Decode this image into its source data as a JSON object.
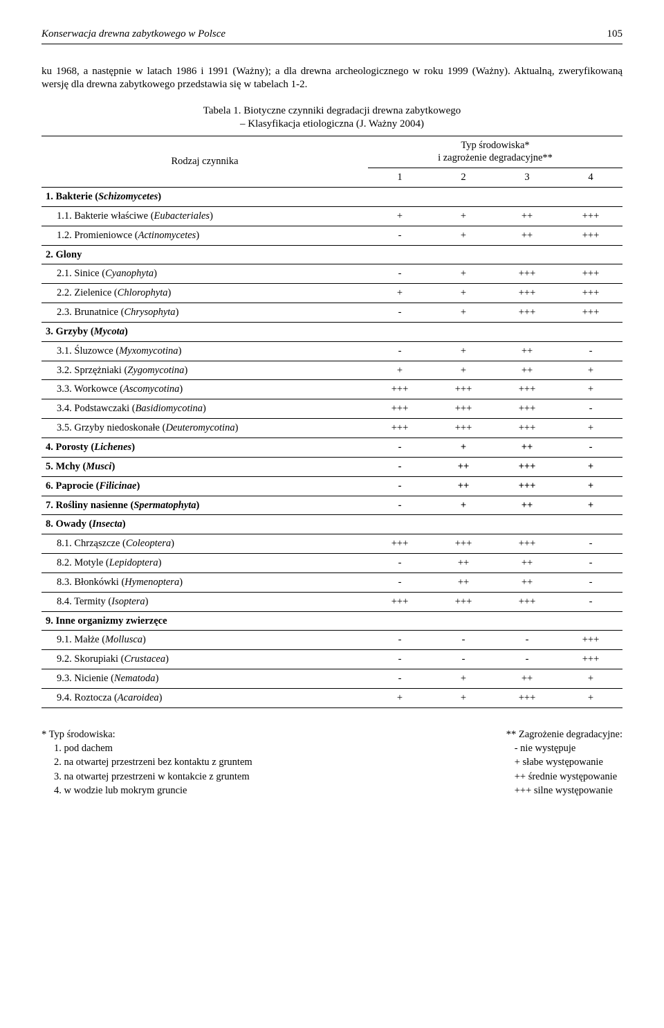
{
  "running_head": {
    "title": "Konserwacja drewna zabytkowego w Polsce",
    "page": "105"
  },
  "body_paragraph": "ku 1968, a następnie w latach 1986 i 1991 (Ważny); a dla drewna archeologicznego w roku 1999 (Ważny). Aktualną, zweryfikowaną wersję dla drewna zabytkowego przedstawia się w tabelach 1-2.",
  "table_caption_line1": "Tabela 1. Biotyczne czynniki degradacji drewna zabytkowego",
  "table_caption_line2": "– Klasyfikacja etiologiczna (J. Ważny 2004)",
  "headers": {
    "factor": "Rodzaj czynnika",
    "env_line1": "Typ środowiska*",
    "env_line2": "i zagrożenie degradacyjne**",
    "c1": "1",
    "c2": "2",
    "c3": "3",
    "c4": "4"
  },
  "rows": [
    {
      "type": "group",
      "label_plain": "1. Bakterie (",
      "label_italic": "Schizomycetes",
      "label_after": ")"
    },
    {
      "type": "sub",
      "label_plain": "1.1. Bakterie właściwe (",
      "label_italic": "Eubacteriales",
      "label_after": ")",
      "v": [
        "+",
        "+",
        "++",
        "+++"
      ]
    },
    {
      "type": "sub",
      "label_plain": "1.2. Promieniowce (",
      "label_italic": "Actinomycetes",
      "label_after": ")",
      "v": [
        "-",
        "+",
        "++",
        "+++"
      ]
    },
    {
      "type": "group",
      "label_plain": "2. Glony",
      "label_italic": "",
      "label_after": ""
    },
    {
      "type": "sub",
      "label_plain": "2.1. Sinice (",
      "label_italic": "Cyanophyta",
      "label_after": ")",
      "v": [
        "-",
        "+",
        "+++",
        "+++"
      ]
    },
    {
      "type": "sub",
      "label_plain": "2.2. Zielenice (",
      "label_italic": "Chlorophyta",
      "label_after": ")",
      "v": [
        "+",
        "+",
        "+++",
        "+++"
      ]
    },
    {
      "type": "sub",
      "label_plain": "2.3. Brunatnice (",
      "label_italic": "Chrysophyta",
      "label_after": ")",
      "v": [
        "-",
        "+",
        "+++",
        "+++"
      ]
    },
    {
      "type": "group",
      "label_plain": "3. Grzyby (",
      "label_italic": "Mycota",
      "label_after": ")"
    },
    {
      "type": "sub",
      "label_plain": "3.1. Śluzowce (",
      "label_italic": "Myxomycotina",
      "label_after": ")",
      "v": [
        "-",
        "+",
        "++",
        "-"
      ]
    },
    {
      "type": "sub",
      "label_plain": "3.2. Sprzężniaki (",
      "label_italic": "Zygomycotina",
      "label_after": ")",
      "v": [
        "+",
        "+",
        "++",
        "+"
      ]
    },
    {
      "type": "sub",
      "label_plain": "3.3. Workowce (",
      "label_italic": "Ascomycotina",
      "label_after": ")",
      "v": [
        "+++",
        "+++",
        "+++",
        "+"
      ]
    },
    {
      "type": "sub",
      "label_plain": "3.4. Podstawczaki (",
      "label_italic": "Basidiomycotina",
      "label_after": ")",
      "v": [
        "+++",
        "+++",
        "+++",
        "-"
      ]
    },
    {
      "type": "sub",
      "label_plain": "3.5. Grzyby niedoskonałe (",
      "label_italic": "Deuteromycotina",
      "label_after": ")",
      "v": [
        "+++",
        "+++",
        "+++",
        "+"
      ]
    },
    {
      "type": "group",
      "label_plain": "4. Porosty (",
      "label_italic": "Lichenes",
      "label_after": ")",
      "v": [
        "-",
        "+",
        "++",
        "-"
      ]
    },
    {
      "type": "group",
      "label_plain": "5. Mchy (",
      "label_italic": "Musci",
      "label_after": ")",
      "v": [
        "-",
        "++",
        "+++",
        "+"
      ]
    },
    {
      "type": "group",
      "label_plain": "6. Paprocie (",
      "label_italic": "Filicinae",
      "label_after": ")",
      "v": [
        "-",
        "++",
        "+++",
        "+"
      ]
    },
    {
      "type": "group",
      "label_plain": "7. Rośliny nasienne (",
      "label_italic": "Spermatophyta",
      "label_after": ")",
      "v": [
        "-",
        "+",
        "++",
        "+"
      ]
    },
    {
      "type": "group",
      "label_plain": "8. Owady (",
      "label_italic": "Insecta",
      "label_after": ")"
    },
    {
      "type": "sub",
      "label_plain": "8.1. Chrząszcze (",
      "label_italic": "Coleoptera",
      "label_after": ")",
      "v": [
        "+++",
        "+++",
        "+++",
        "-"
      ]
    },
    {
      "type": "sub",
      "label_plain": "8.2. Motyle (",
      "label_italic": "Lepidoptera",
      "label_after": ")",
      "v": [
        "-",
        "++",
        "++",
        "-"
      ]
    },
    {
      "type": "sub",
      "label_plain": "8.3. Błonkówki (",
      "label_italic": "Hymenoptera",
      "label_after": ")",
      "v": [
        "-",
        "++",
        "++",
        "-"
      ]
    },
    {
      "type": "sub",
      "label_plain": "8.4. Termity (",
      "label_italic": "Isoptera",
      "label_after": ")",
      "v": [
        "+++",
        "+++",
        "+++",
        "-"
      ]
    },
    {
      "type": "group",
      "label_plain": "9. Inne organizmy zwierzęce",
      "label_italic": "",
      "label_after": ""
    },
    {
      "type": "sub",
      "label_plain": "9.1. Małże (",
      "label_italic": "Mollusca",
      "label_after": ")",
      "v": [
        "-",
        "-",
        "-",
        "+++"
      ]
    },
    {
      "type": "sub",
      "label_plain": "9.2. Skorupiaki (",
      "label_italic": "Crustacea",
      "label_after": ")",
      "v": [
        "-",
        "-",
        "-",
        "+++"
      ]
    },
    {
      "type": "sub",
      "label_plain": "9.3. Nicienie (",
      "label_italic": "Nematoda",
      "label_after": ")",
      "v": [
        "-",
        "+",
        "++",
        "+"
      ]
    },
    {
      "type": "sub",
      "label_plain": "9.4. Roztocza (",
      "label_italic": "Acaroidea",
      "label_after": ")",
      "v": [
        "+",
        "+",
        "+++",
        "+"
      ]
    }
  ],
  "legend_left": {
    "title": "* Typ środowiska:",
    "items": [
      "1. pod dachem",
      "2. na otwartej przestrzeni bez kontaktu z gruntem",
      "3. na otwartej przestrzeni w kontakcie z gruntem",
      "4. w wodzie lub mokrym gruncie"
    ]
  },
  "legend_right": {
    "title": "** Zagrożenie degradacyjne:",
    "items": [
      "-  nie występuje",
      "+  słabe występowanie",
      "++  średnie występowanie",
      "+++  silne występowanie"
    ]
  }
}
